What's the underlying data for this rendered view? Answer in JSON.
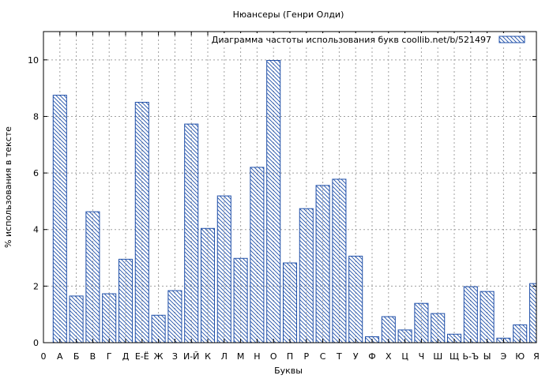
{
  "chart_data": {
    "type": "bar",
    "title": "Нюансеры (Генри Олди)",
    "xlabel": "Буквы",
    "ylabel": "% использования в тексте",
    "legend": {
      "label": "Диаграмма частоты использования букв  coollib.net/b/521497",
      "position": "top-right"
    },
    "grid": true,
    "ylim": [
      0,
      11
    ],
    "yticks": [
      0,
      2,
      4,
      6,
      8,
      10
    ],
    "xticks": [
      "0",
      "А",
      "Б",
      "В",
      "Г",
      "Д",
      "Е-Ё",
      "Ж",
      "З",
      "И-Й",
      "К",
      "Л",
      "М",
      "Н",
      "О",
      "П",
      "Р",
      "С",
      "Т",
      "У",
      "Ф",
      "Х",
      "Ц",
      "Ч",
      "Ш",
      "Щ",
      "Ь-Ъ",
      "Ы",
      "Э",
      "Ю",
      "Я"
    ],
    "categories": [
      "А",
      "Б",
      "В",
      "Г",
      "Д",
      "Е-Ё",
      "Ж",
      "З",
      "И-Й",
      "К",
      "Л",
      "М",
      "Н",
      "О",
      "П",
      "Р",
      "С",
      "Т",
      "У",
      "Ф",
      "Х",
      "Ц",
      "Ч",
      "Ш",
      "Щ",
      "Ь-Ъ",
      "Ы",
      "Э",
      "Ю",
      "Я"
    ],
    "values": [
      8.75,
      1.65,
      4.63,
      1.73,
      2.95,
      8.5,
      0.97,
      1.84,
      7.73,
      4.04,
      5.19,
      2.98,
      6.2,
      9.98,
      2.82,
      4.74,
      5.56,
      5.78,
      3.06,
      0.21,
      0.92,
      0.45,
      1.39,
      1.03,
      0.3,
      1.98,
      1.81,
      0.16,
      0.63,
      2.09
    ],
    "colors": {
      "bar": "#1f4fa8",
      "axis": "#000000",
      "grid": "#a0a0a0"
    }
  }
}
